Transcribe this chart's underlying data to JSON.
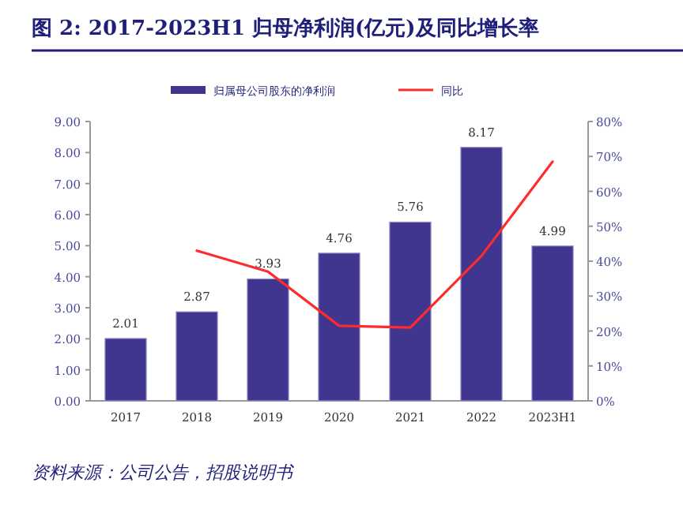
{
  "chart_data": {
    "type": "bar",
    "title": "图 2: 2017-2023H1 归母净利润(亿元)及同比增长率",
    "categories": [
      "2017",
      "2018",
      "2019",
      "2020",
      "2021",
      "2022",
      "2023H1"
    ],
    "series": [
      {
        "name": "归属母公司股东的净利润",
        "color": "#41368f",
        "values": [
          2.01,
          2.87,
          3.93,
          4.76,
          5.76,
          8.17,
          4.99
        ],
        "value_labels": [
          "2.01",
          "2.87",
          "3.93",
          "4.76",
          "5.76",
          "8.17",
          "4.99"
        ]
      },
      {
        "name": "同比",
        "type": "line",
        "axis": "y2",
        "color": "#ff2a2a",
        "values": [
          null,
          43,
          37,
          21.5,
          21,
          41.5,
          68.5
        ]
      }
    ],
    "ylim": [
      0,
      9
    ],
    "yticks": [
      {
        "value": 0,
        "label": "0.00"
      },
      {
        "value": 1,
        "label": "1.00"
      },
      {
        "value": 2,
        "label": "2.00"
      },
      {
        "value": 3,
        "label": "3.00"
      },
      {
        "value": 4,
        "label": "4.00"
      },
      {
        "value": 5,
        "label": "5.00"
      },
      {
        "value": 6,
        "label": "6.00"
      },
      {
        "value": 7,
        "label": "7.00"
      },
      {
        "value": 8,
        "label": "8.00"
      },
      {
        "value": 9,
        "label": "9.00"
      }
    ],
    "y2lim": [
      0,
      80
    ],
    "y2ticks": [
      {
        "value": 0,
        "label": "0%"
      },
      {
        "value": 10,
        "label": "10%"
      },
      {
        "value": 20,
        "label": "20%"
      },
      {
        "value": 30,
        "label": "30%"
      },
      {
        "value": 40,
        "label": "40%"
      },
      {
        "value": 50,
        "label": "50%"
      },
      {
        "value": 60,
        "label": "60%"
      },
      {
        "value": 70,
        "label": "70%"
      },
      {
        "value": 80,
        "label": "80%"
      }
    ],
    "legend": "top",
    "grid": false,
    "marker": "none",
    "line_style": "solid",
    "annotations": [
      "资料来源：公司公告，招股说明书"
    ]
  }
}
